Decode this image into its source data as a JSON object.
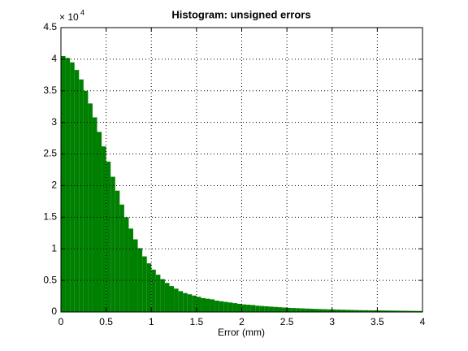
{
  "chart_data": {
    "type": "histogram",
    "title": "Histogram: unsigned errors",
    "x_label": "Error (mm)",
    "y_multiplier": "× 10",
    "y_exponent": "4",
    "bins": [
      0,
      0.05,
      0.1,
      0.15,
      0.2,
      0.25,
      0.3,
      0.35,
      0.4,
      0.45,
      0.5,
      0.55,
      0.6,
      0.65,
      0.7,
      0.75,
      0.8,
      0.85,
      0.9,
      0.95,
      1,
      1.05,
      1.1,
      1.15,
      1.2,
      1.25,
      1.3,
      1.35,
      1.4,
      1.45,
      1.5,
      1.55,
      1.6,
      1.65,
      1.7,
      1.75,
      1.8,
      1.85,
      1.9,
      1.95,
      2,
      2.05,
      2.1,
      2.15,
      2.2,
      2.25,
      2.3,
      2.35,
      2.4,
      2.45,
      2.5,
      2.55,
      2.6,
      2.65,
      2.7,
      2.75,
      2.8,
      2.85,
      2.9,
      2.95,
      3,
      3.05,
      3.1,
      3.15,
      3.2,
      3.25,
      3.3,
      3.35,
      3.4,
      3.45,
      3.5,
      3.55,
      3.6,
      3.65,
      3.7,
      3.75,
      3.8,
      3.85,
      3.9,
      3.95,
      4
    ],
    "counts": [
      40500,
      40200,
      39500,
      38300,
      36800,
      35000,
      33000,
      30800,
      28500,
      26200,
      23800,
      21400,
      19200,
      17000,
      15000,
      13200,
      11500,
      10100,
      8800,
      7700,
      6700,
      5900,
      5200,
      4600,
      4100,
      3700,
      3300,
      3000,
      2800,
      2600,
      2400,
      2200,
      2100,
      2000,
      1800,
      1700,
      1600,
      1500,
      1400,
      1300,
      1200,
      1150,
      1100,
      1000,
      950,
      900,
      850,
      800,
      750,
      700,
      660,
      630,
      600,
      570,
      540,
      510,
      480,
      460,
      440,
      420,
      400,
      380,
      360,
      340,
      320,
      300,
      290,
      280,
      270,
      260,
      250,
      240,
      230,
      220,
      210,
      200,
      190,
      180,
      170,
      160
    ],
    "color": "#008000",
    "xlim": [
      0,
      4
    ],
    "xticks": [
      0,
      0.5,
      1,
      1.5,
      2,
      2.5,
      3,
      3.5,
      4
    ],
    "ylim": [
      0,
      45000
    ],
    "yticks": [
      {
        "value": 0,
        "label": "0"
      },
      {
        "value": 5000,
        "label": "0.5"
      },
      {
        "value": 10000,
        "label": "1"
      },
      {
        "value": 15000,
        "label": "1.5"
      },
      {
        "value": 20000,
        "label": "2"
      },
      {
        "value": 25000,
        "label": "2.5"
      },
      {
        "value": 30000,
        "label": "3"
      },
      {
        "value": 35000,
        "label": "3.5"
      },
      {
        "value": 40000,
        "label": "4"
      },
      {
        "value": 45000,
        "label": "4.5"
      }
    ],
    "grid": true
  }
}
